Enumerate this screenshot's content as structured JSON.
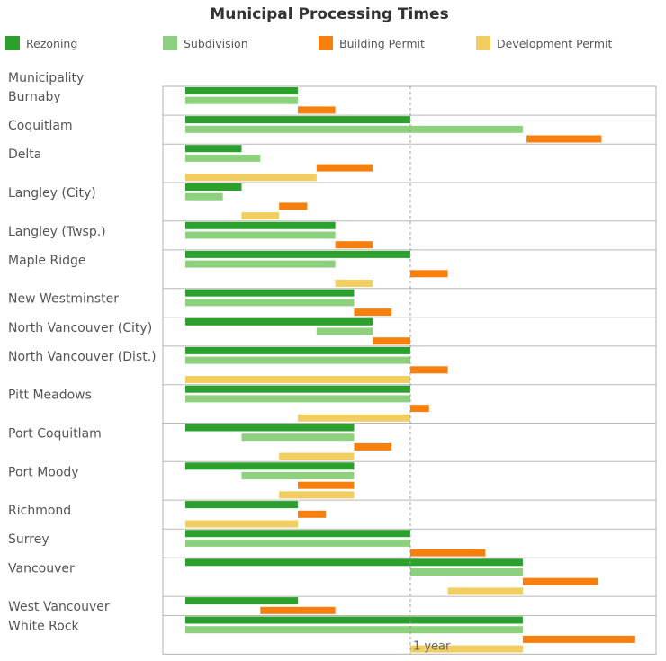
{
  "chart_data": {
    "type": "bar",
    "orientation": "gantt",
    "title": "Municipal Processing Times",
    "row_header": "Municipality",
    "series_colors": {
      "Rezoning": "#2ca02c",
      "Subdivision": "#8dd17e",
      "Building Permit": "#f77f0e",
      "Development Permit": "#f2cd60"
    },
    "legend": [
      "Rezoning",
      "Subdivision",
      "Building Permit",
      "Development Permit"
    ],
    "reference_line": {
      "label": "1 year",
      "value": 12
    },
    "x_unit": "months",
    "rows": [
      {
        "name": "Burnaby",
        "lines": [
          {
            "series": "Rezoning",
            "start": 0,
            "end": 6
          },
          {
            "series": "Subdivision",
            "start": 0,
            "end": 6
          },
          {
            "series": "Building Permit",
            "start": 6,
            "end": 8
          }
        ]
      },
      {
        "name": "Coquitlam",
        "lines": [
          {
            "series": "Rezoning",
            "start": 0,
            "end": 12
          },
          {
            "series": "Subdivision",
            "start": 0,
            "end": 18
          },
          {
            "series": "Building Permit",
            "start": 18.2,
            "end": 22.2
          }
        ]
      },
      {
        "name": "Delta",
        "lines": [
          {
            "series": "Rezoning",
            "start": 0,
            "end": 3
          },
          {
            "series": "Subdivision",
            "start": 0,
            "end": 4
          },
          {
            "series": "Building Permit",
            "start": 7,
            "end": 10
          },
          {
            "series": "Development Permit",
            "start": 0,
            "end": 7
          }
        ]
      },
      {
        "name": "Langley (City)",
        "lines": [
          {
            "series": "Rezoning",
            "start": 0,
            "end": 3
          },
          {
            "series": "Subdivision",
            "start": 0,
            "end": 2
          },
          {
            "series": "Building Permit",
            "start": 5,
            "end": 6.5
          },
          {
            "series": "Development Permit",
            "start": 3,
            "end": 5
          }
        ]
      },
      {
        "name": "Langley (Twsp.)",
        "lines": [
          {
            "series": "Rezoning",
            "start": 0,
            "end": 8
          },
          {
            "series": "Subdivision",
            "start": 0,
            "end": 8
          },
          {
            "series": "Building Permit",
            "start": 8,
            "end": 10
          }
        ]
      },
      {
        "name": "Maple Ridge",
        "lines": [
          {
            "series": "Rezoning",
            "start": 0,
            "end": 12
          },
          {
            "series": "Subdivision",
            "start": 0,
            "end": 8
          },
          {
            "series": "Building Permit",
            "start": 12,
            "end": 14
          },
          {
            "series": "Development Permit",
            "start": 8,
            "end": 10
          }
        ]
      },
      {
        "name": "New Westminster",
        "lines": [
          {
            "series": "Rezoning",
            "start": 0,
            "end": 9
          },
          {
            "series": "Subdivision",
            "start": 0,
            "end": 9
          },
          {
            "series": "Building Permit",
            "start": 9,
            "end": 11
          }
        ]
      },
      {
        "name": "North Vancouver (City)",
        "lines": [
          {
            "series": "Rezoning",
            "start": 0,
            "end": 10
          },
          {
            "series": "Subdivision",
            "start": 7,
            "end": 10
          },
          {
            "series": "Building Permit",
            "start": 10,
            "end": 12
          }
        ]
      },
      {
        "name": "North Vancouver (Dist.)",
        "lines": [
          {
            "series": "Rezoning",
            "start": 0,
            "end": 12
          },
          {
            "series": "Subdivision",
            "start": 0,
            "end": 12
          },
          {
            "series": "Building Permit",
            "start": 12,
            "end": 14
          },
          {
            "series": "Development Permit",
            "start": 0,
            "end": 12
          }
        ]
      },
      {
        "name": "Pitt Meadows",
        "lines": [
          {
            "series": "Rezoning",
            "start": 0,
            "end": 12
          },
          {
            "series": "Subdivision",
            "start": 0,
            "end": 12
          },
          {
            "series": "Building Permit",
            "start": 12,
            "end": 13
          },
          {
            "series": "Development Permit",
            "start": 6,
            "end": 12
          }
        ]
      },
      {
        "name": "Port Coquitlam",
        "lines": [
          {
            "series": "Rezoning",
            "start": 0,
            "end": 9
          },
          {
            "series": "Subdivision",
            "start": 3,
            "end": 9
          },
          {
            "series": "Building Permit",
            "start": 9,
            "end": 11
          },
          {
            "series": "Development Permit",
            "start": 5,
            "end": 9
          }
        ]
      },
      {
        "name": "Port Moody",
        "lines": [
          {
            "series": "Rezoning",
            "start": 0,
            "end": 9
          },
          {
            "series": "Subdivision",
            "start": 3,
            "end": 9
          },
          {
            "series": "Building Permit",
            "start": 6,
            "end": 9
          },
          {
            "series": "Development Permit",
            "start": 5,
            "end": 9
          }
        ]
      },
      {
        "name": "Richmond",
        "lines": [
          {
            "series": "Rezoning",
            "start": 0,
            "end": 6
          },
          {
            "series": "Building Permit",
            "start": 6,
            "end": 7.5
          },
          {
            "series": "Development Permit",
            "start": 0,
            "end": 6
          }
        ]
      },
      {
        "name": "Surrey",
        "lines": [
          {
            "series": "Rezoning",
            "start": 0,
            "end": 12
          },
          {
            "series": "Subdivision",
            "start": 0,
            "end": 12
          },
          {
            "series": "Building Permit",
            "start": 12,
            "end": 16
          }
        ]
      },
      {
        "name": "Vancouver",
        "lines": [
          {
            "series": "Rezoning",
            "start": 0,
            "end": 18
          },
          {
            "series": "Subdivision",
            "start": 12,
            "end": 18
          },
          {
            "series": "Building Permit",
            "start": 18,
            "end": 22
          },
          {
            "series": "Development Permit",
            "start": 14,
            "end": 18
          }
        ]
      },
      {
        "name": "West Vancouver",
        "lines": [
          {
            "series": "Rezoning",
            "start": 0,
            "end": 6
          },
          {
            "series": "Building Permit",
            "start": 4,
            "end": 8
          }
        ]
      },
      {
        "name": "White Rock",
        "lines": [
          {
            "series": "Rezoning",
            "start": 0,
            "end": 18
          },
          {
            "series": "Subdivision",
            "start": 0,
            "end": 18
          },
          {
            "series": "Building Permit",
            "start": 18,
            "end": 24
          },
          {
            "series": "Development Permit",
            "start": 12,
            "end": 18
          }
        ]
      }
    ]
  }
}
